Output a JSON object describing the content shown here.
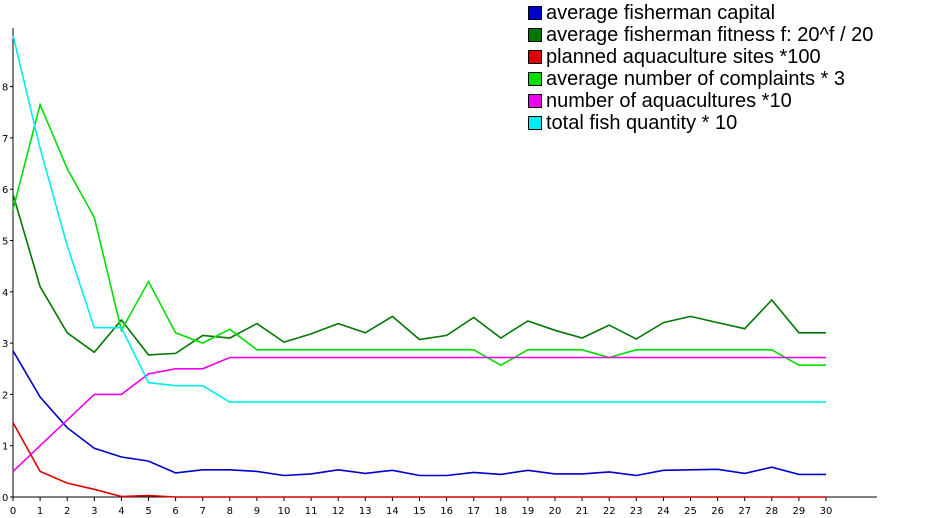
{
  "chart_data": {
    "type": "line",
    "x": [
      0,
      1,
      2,
      3,
      4,
      5,
      6,
      7,
      8,
      9,
      10,
      11,
      12,
      13,
      14,
      15,
      16,
      17,
      18,
      19,
      20,
      21,
      22,
      23,
      24,
      25,
      26,
      27,
      28,
      29,
      30
    ],
    "xlim": [
      0,
      32
    ],
    "ylim": [
      0,
      9
    ],
    "x_ticks": [
      0,
      1,
      2,
      3,
      4,
      5,
      6,
      7,
      8,
      9,
      10,
      11,
      12,
      13,
      14,
      15,
      16,
      17,
      18,
      19,
      20,
      21,
      22,
      23,
      24,
      25,
      26,
      27,
      28,
      29,
      30
    ],
    "y_ticks": [
      0,
      1,
      2,
      3,
      4,
      5,
      6,
      7,
      8
    ],
    "grid": false,
    "legend_position": "top-right",
    "series": [
      {
        "name": "average fisherman capital",
        "color": "#0000cc",
        "values": [
          2.85,
          1.95,
          1.35,
          0.95,
          0.78,
          0.7,
          0.47,
          0.53,
          0.53,
          0.5,
          0.42,
          0.45,
          0.53,
          0.46,
          0.52,
          0.42,
          0.42,
          0.48,
          0.44,
          0.52,
          0.45,
          0.45,
          0.49,
          0.42,
          0.52,
          0.53,
          0.54,
          0.46,
          0.58,
          0.44,
          0.44
        ]
      },
      {
        "name": "average fisherman fitness f: 20^f / 20",
        "color": "#007700",
        "values": [
          5.9,
          4.1,
          3.2,
          2.82,
          3.45,
          2.77,
          2.8,
          3.15,
          3.1,
          3.38,
          3.02,
          3.18,
          3.38,
          3.2,
          3.52,
          3.07,
          3.15,
          3.5,
          3.1,
          3.43,
          3.25,
          3.1,
          3.35,
          3.08,
          3.4,
          3.52,
          3.4,
          3.28,
          3.84,
          3.2,
          3.2
        ]
      },
      {
        "name": "planned aquaculture sites *100",
        "color": "#dd0000",
        "values": [
          1.45,
          0.5,
          0.27,
          0.15,
          0.01,
          0.03,
          0,
          0,
          0,
          0,
          0,
          0,
          0,
          0,
          0,
          0,
          0,
          0,
          0,
          0,
          0,
          0,
          0,
          0,
          0,
          0,
          0,
          0,
          0,
          0,
          0
        ]
      },
      {
        "name": "average number of complaints * 3",
        "color": "#00dd00",
        "values": [
          5.6,
          7.65,
          6.4,
          5.45,
          3.25,
          4.2,
          3.2,
          3.0,
          3.27,
          2.87,
          2.87,
          2.87,
          2.87,
          2.87,
          2.87,
          2.87,
          2.87,
          2.87,
          2.57,
          2.87,
          2.87,
          2.87,
          2.72,
          2.87,
          2.87,
          2.87,
          2.87,
          2.87,
          2.87,
          2.57,
          2.57
        ]
      },
      {
        "name": "number of aquacultures *10",
        "color": "#ee00ee",
        "values": [
          0.5,
          1.0,
          1.5,
          2.0,
          2.0,
          2.4,
          2.5,
          2.5,
          2.72,
          2.72,
          2.72,
          2.72,
          2.72,
          2.72,
          2.72,
          2.72,
          2.72,
          2.72,
          2.72,
          2.72,
          2.72,
          2.72,
          2.72,
          2.72,
          2.72,
          2.72,
          2.72,
          2.72,
          2.72,
          2.72,
          2.72
        ]
      },
      {
        "name": "total fish quantity * 10",
        "color": "#00eeee",
        "values": [
          9.0,
          6.8,
          4.9,
          3.3,
          3.3,
          2.23,
          2.17,
          2.17,
          1.85,
          1.85,
          1.85,
          1.85,
          1.85,
          1.85,
          1.85,
          1.85,
          1.85,
          1.85,
          1.85,
          1.85,
          1.85,
          1.85,
          1.85,
          1.85,
          1.85,
          1.85,
          1.85,
          1.85,
          1.85,
          1.85,
          1.85
        ]
      }
    ]
  }
}
